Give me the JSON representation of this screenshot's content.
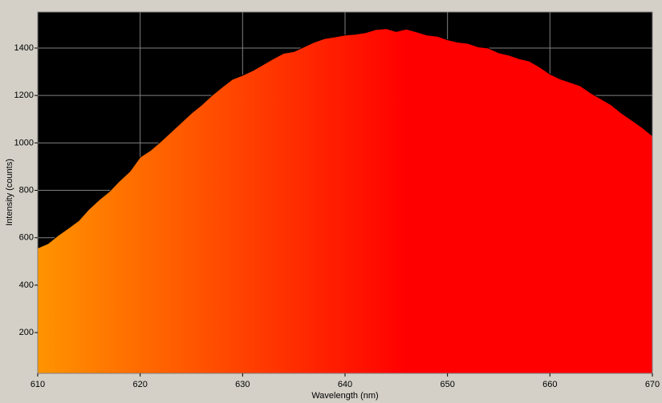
{
  "chart_data": {
    "type": "area",
    "x_label": "Wavelength (nm)",
    "y_label": "Intensity (counts)",
    "x": [
      610,
      611,
      612,
      613,
      614,
      615,
      616,
      617,
      618,
      619,
      620,
      621,
      622,
      623,
      624,
      625,
      626,
      627,
      628,
      629,
      630,
      631,
      632,
      633,
      634,
      635,
      636,
      637,
      638,
      639,
      640,
      641,
      642,
      643,
      644,
      645,
      646,
      647,
      648,
      649,
      650,
      651,
      652,
      653,
      654,
      655,
      656,
      657,
      658,
      659,
      660,
      661,
      662,
      663,
      664,
      665,
      666,
      667,
      668,
      669,
      670
    ],
    "values": [
      557,
      575,
      610,
      640,
      672,
      720,
      760,
      795,
      840,
      880,
      940,
      968,
      1005,
      1045,
      1085,
      1125,
      1160,
      1200,
      1235,
      1268,
      1285,
      1305,
      1330,
      1355,
      1378,
      1385,
      1405,
      1425,
      1440,
      1447,
      1455,
      1458,
      1465,
      1478,
      1482,
      1470,
      1480,
      1468,
      1455,
      1450,
      1435,
      1425,
      1420,
      1405,
      1400,
      1380,
      1370,
      1355,
      1345,
      1320,
      1290,
      1270,
      1255,
      1240,
      1210,
      1185,
      1160,
      1125,
      1095,
      1065,
      1030
    ],
    "xlim": [
      610,
      670
    ],
    "xticks": [
      610,
      620,
      630,
      640,
      650,
      660,
      670
    ],
    "ylim": [
      28,
      1552
    ],
    "yticks": [
      200,
      400,
      600,
      800,
      1000,
      1200,
      1400
    ],
    "grid": true,
    "line_color": "#000000",
    "gradient_colors": [
      "#ff9400",
      "#ff0000"
    ]
  }
}
